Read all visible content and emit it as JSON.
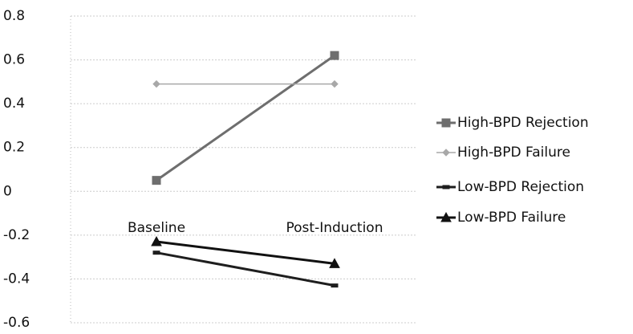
{
  "chart_data": {
    "type": "line",
    "categories": [
      "Baseline",
      "Post-Induction"
    ],
    "series": [
      {
        "name": "High-BPD Rejection",
        "color": "#6e6e6e",
        "marker": "square",
        "values": [
          0.05,
          0.62
        ]
      },
      {
        "name": "High-BPD Failure",
        "color": "#a8a8a8",
        "marker": "diamond",
        "values": [
          0.49,
          0.49
        ]
      },
      {
        "name": "Low-BPD Rejection",
        "color": "#1e1e1e",
        "marker": "dash",
        "values": [
          -0.28,
          -0.43
        ]
      },
      {
        "name": "Low-BPD Failure",
        "color": "#111111",
        "marker": "triangle",
        "values": [
          -0.23,
          -0.33
        ]
      }
    ],
    "ylim": [
      -0.6,
      0.8
    ],
    "yticks": [
      0.8,
      0.6,
      0.4,
      0.2,
      0,
      -0.2,
      -0.4,
      -0.6
    ],
    "grid": true,
    "legend": "right"
  }
}
